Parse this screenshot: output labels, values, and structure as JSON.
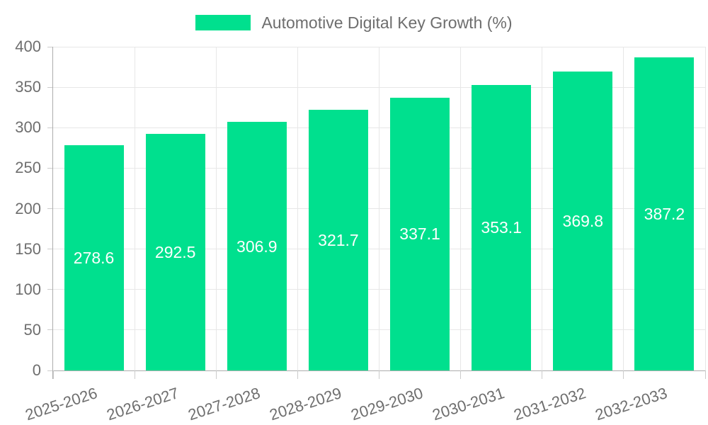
{
  "legend": {
    "label": "Automotive Digital Key Growth (%)"
  },
  "colors": {
    "bar": "#00e08e",
    "grid": "#e7e7e7",
    "axis": "#adadad",
    "tick": "#cccccc",
    "axis_label": "#6e6e6e",
    "value_label": "#ffffff",
    "background": "#ffffff"
  },
  "chart_data": {
    "type": "bar",
    "title": "Automotive Digital Key Growth (%)",
    "categories": [
      "2025-2026",
      "2026-2027",
      "2027-2028",
      "2028-2029",
      "2029-2030",
      "2030-2031",
      "2031-2032",
      "2032-2033"
    ],
    "series": [
      {
        "name": "Automotive Digital Key Growth (%)",
        "values": [
          278.6,
          292.5,
          306.9,
          321.7,
          337.1,
          353.1,
          369.8,
          387.2
        ]
      }
    ],
    "value_label_format": "1-decimal",
    "value_label_position": "inside-center",
    "xlabel": "",
    "ylabel": "",
    "ylim": [
      0,
      400
    ],
    "ytick_step": 50,
    "grid": true,
    "legend_position": "top-center",
    "xtick_rotation_deg": -18
  }
}
